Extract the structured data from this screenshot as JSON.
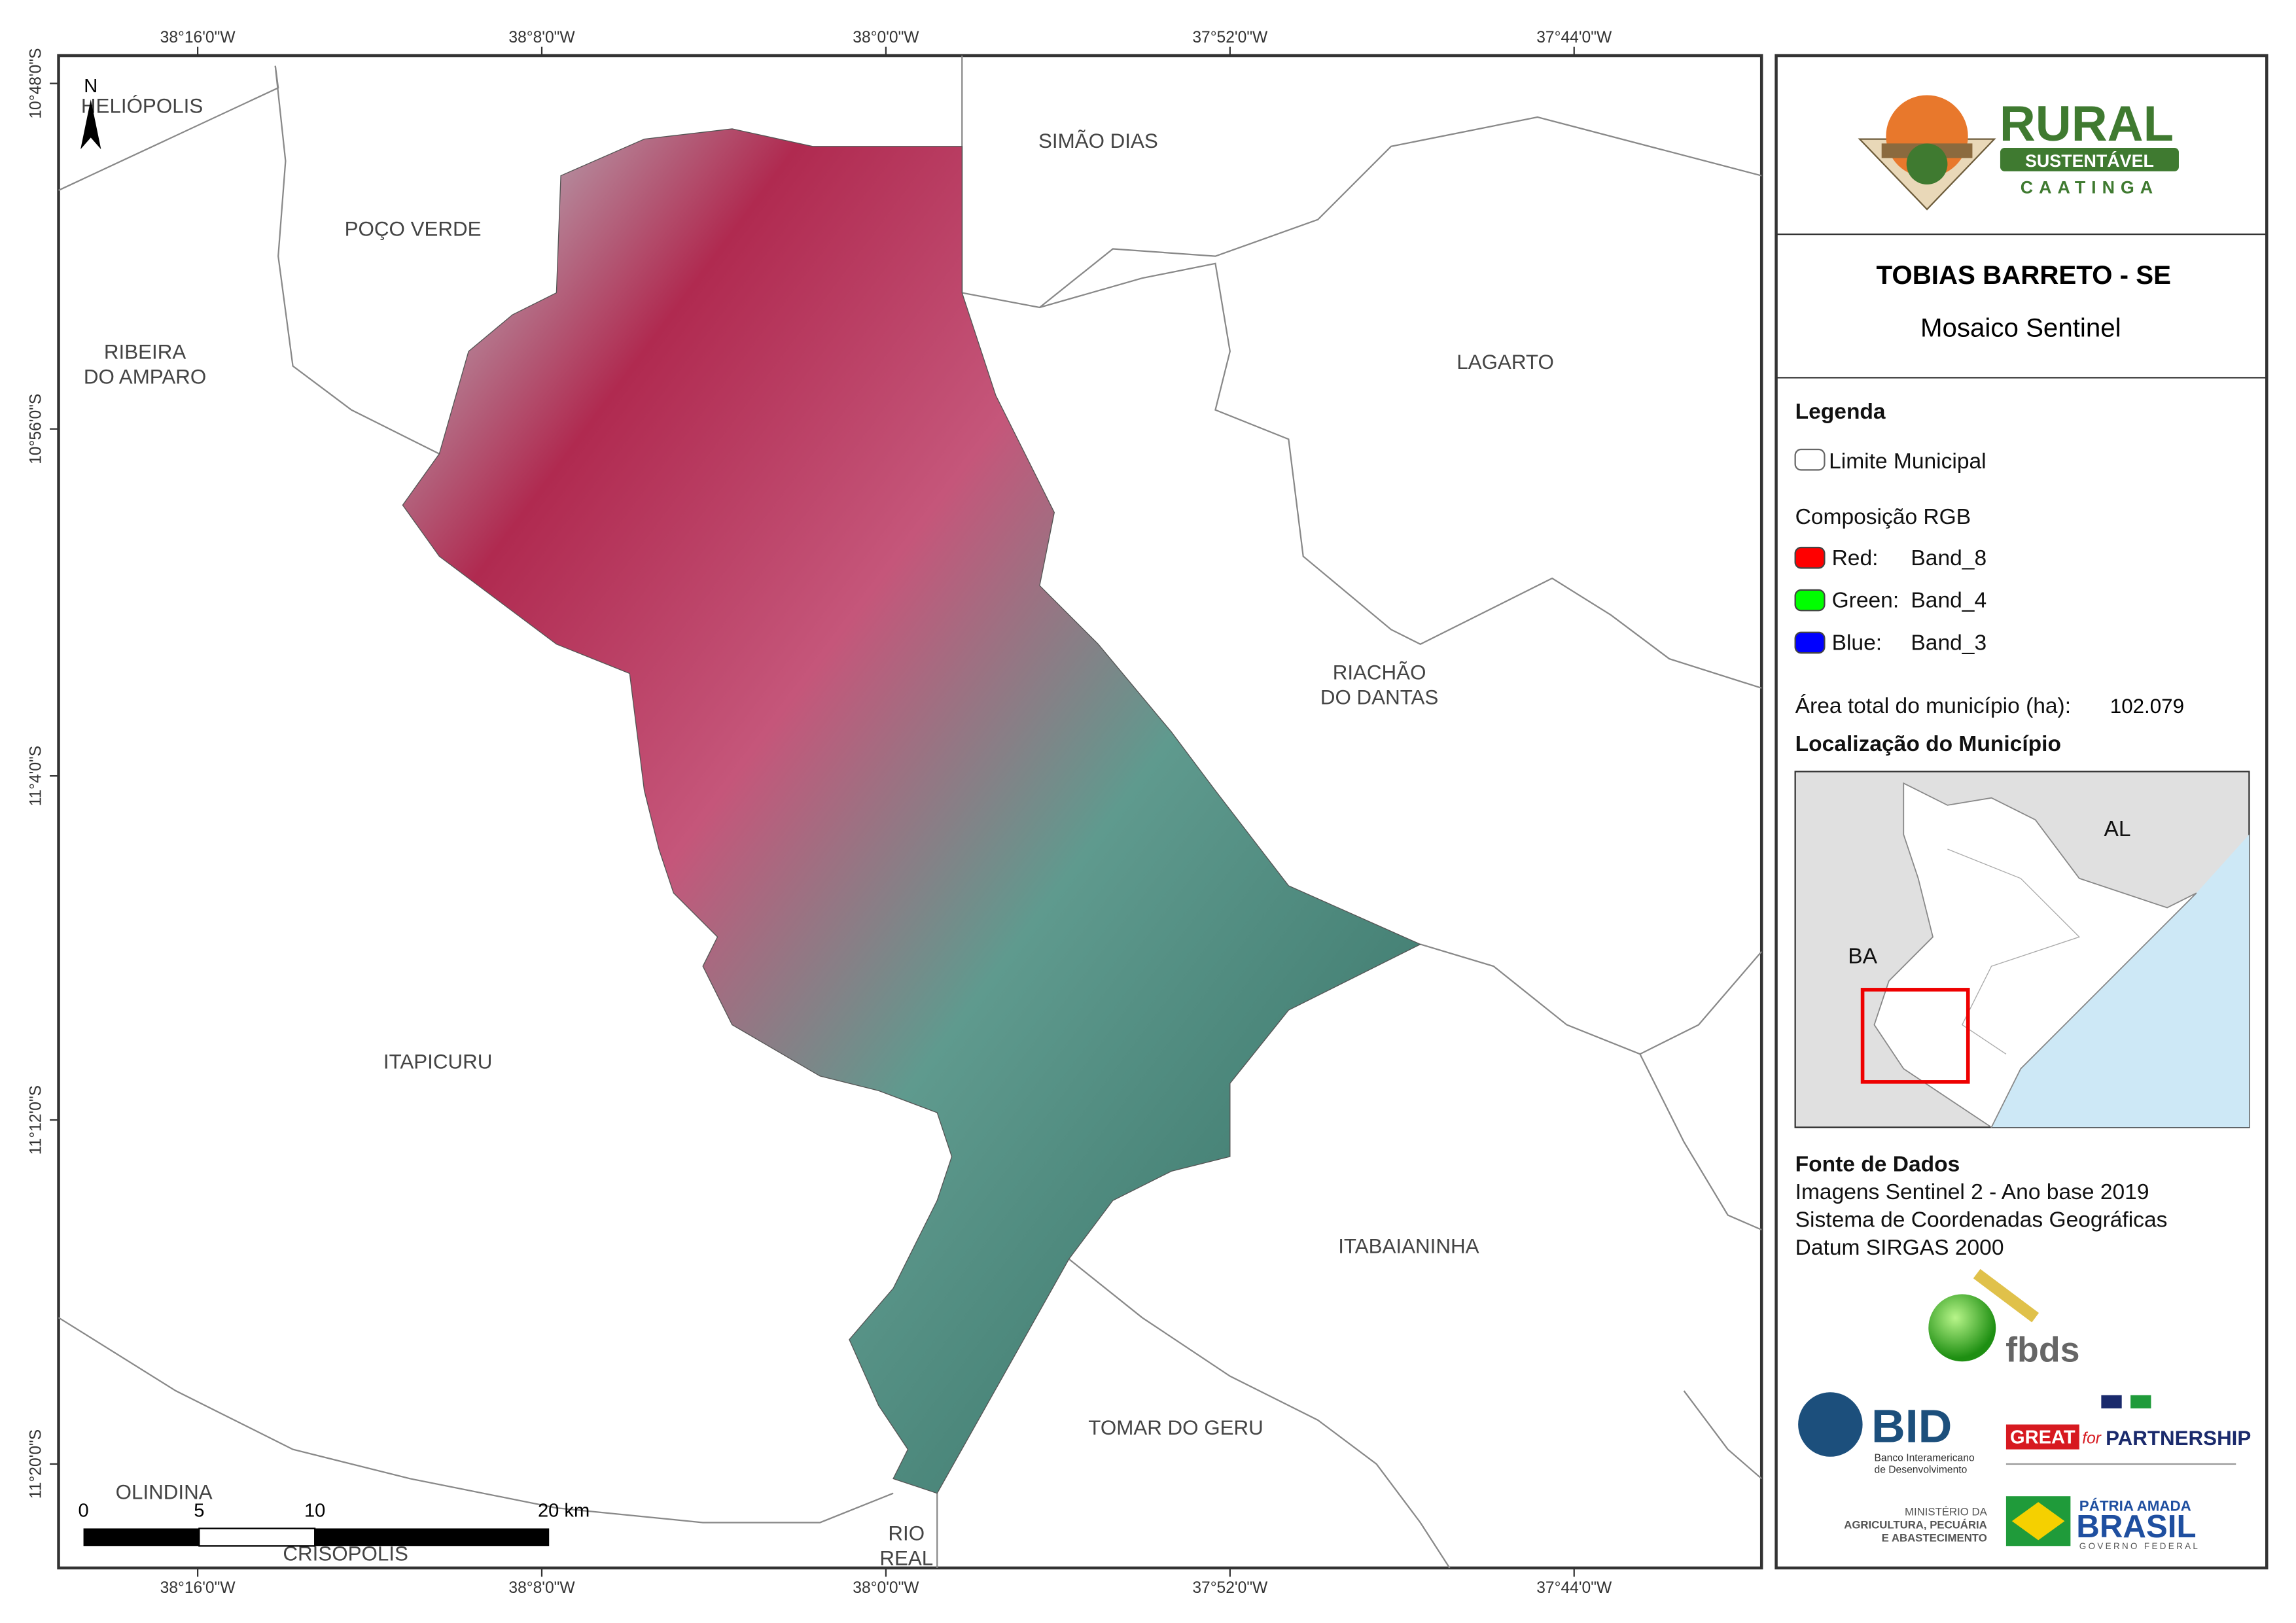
{
  "map": {
    "top_ticks": [
      "38°16'0\"W",
      "38°8'0\"W",
      "38°0'0\"W",
      "37°52'0\"W",
      "37°44'0\"W"
    ],
    "bottom_ticks": [
      "38°16'0\"W",
      "38°8'0\"W",
      "38°0'0\"W",
      "37°52'0\"W",
      "37°44'0\"W"
    ],
    "left_ticks": [
      "10°48'0\"S",
      "10°56'0\"S",
      "11°4'0\"S",
      "11°12'0\"S",
      "11°20'0\"S"
    ],
    "places": [
      [
        "HELIÓPOLIS"
      ],
      [
        "POÇO VERDE"
      ],
      [
        "SIMÃO DIAS"
      ],
      [
        "RIBEIRA",
        "DO AMPARO"
      ],
      [
        "LAGARTO"
      ],
      [
        "RIACHÃO",
        "DO DANTAS"
      ],
      [
        "ITAPICURU"
      ],
      [
        "ITABAIANINHA"
      ],
      [
        "TOMAR DO GERU"
      ],
      [
        "OLINDINA"
      ],
      [
        "CRISÓPOLIS"
      ],
      [
        "RIO",
        "REAL"
      ]
    ],
    "north": "N",
    "scale_labels": [
      "0",
      "5",
      "10",
      "20 km"
    ]
  },
  "panel": {
    "logo": {
      "word": "RURAL",
      "band": "SUSTENTÁVEL",
      "sub": "CAATINGA"
    },
    "title": "TOBIAS BARRETO - SE",
    "subtitle": "Mosaico Sentinel",
    "legend": {
      "heading": "Legenda",
      "boundary": "Limite Municipal",
      "rgb_heading": "Composição RGB",
      "bands": [
        [
          "Red:",
          "Band_8"
        ],
        [
          "Green:",
          "Band_4"
        ],
        [
          "Blue:",
          "Band_3"
        ]
      ],
      "area_label": "Área total do município (ha):",
      "area_value": "102.079",
      "location_heading": "Localização do Município"
    },
    "inset": {
      "labels": [
        "AL",
        "BA"
      ]
    },
    "source": {
      "heading": "Fonte de Dados",
      "lines": [
        "Imagens Sentinel 2 - Ano base 2019",
        "Sistema de Coordenadas Geográficas",
        "Datum SIRGAS 2000"
      ]
    },
    "logos": {
      "fbds": "fbds",
      "bid": "BID",
      "bid_sub": [
        "Banco Interamericano",
        "de Desenvolvimento"
      ],
      "great": "GREAT",
      "great_for": "for",
      "great_partner": "PARTNERSHIP",
      "ministry": [
        "MINISTÉRIO DA",
        "AGRICULTURA, PECUÁRIA",
        "E ABASTECIMENTO"
      ],
      "brasil_top": "PÁTRIA AMADA",
      "brasil": "BRASIL",
      "gov": "GOVERNO FEDERAL"
    }
  }
}
